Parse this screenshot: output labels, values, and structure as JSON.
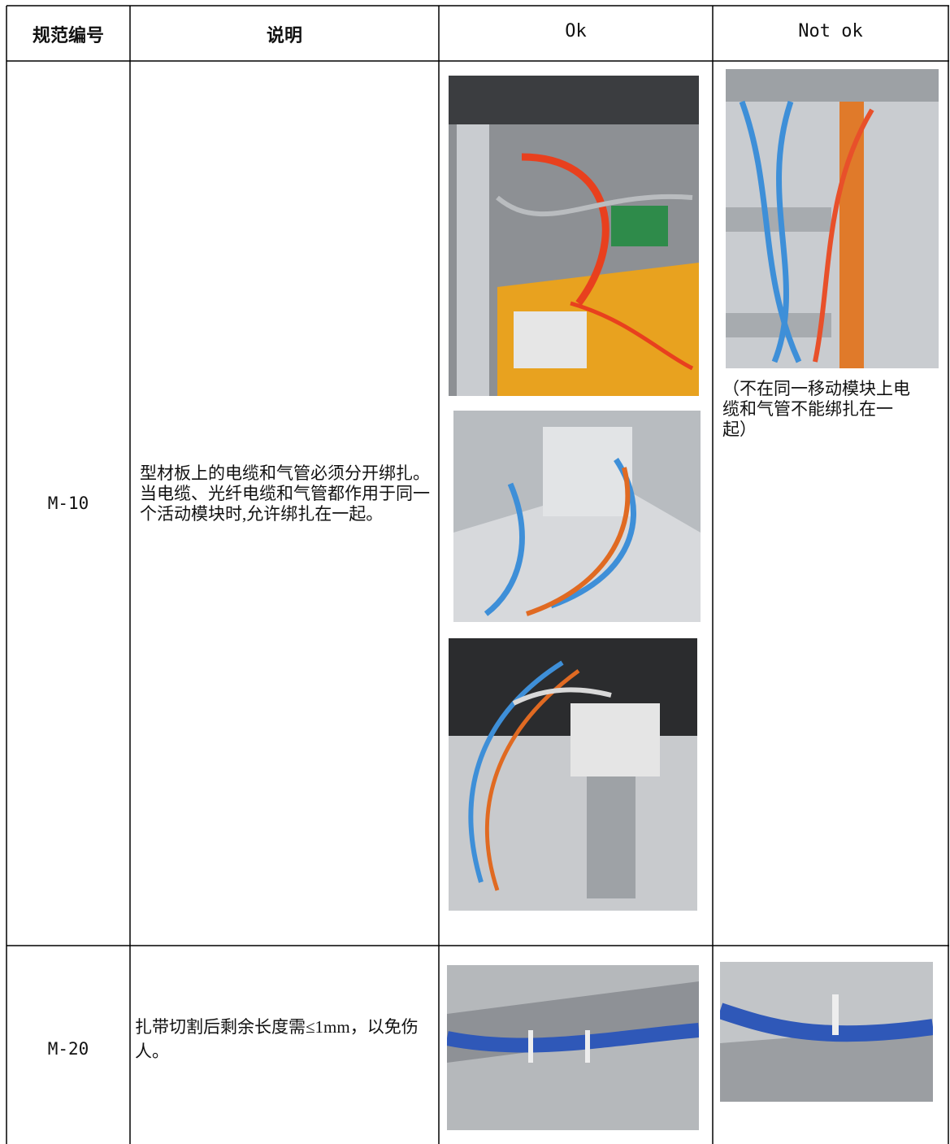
{
  "table": {
    "header": [
      "规范编号",
      "说明",
      "Ok",
      "Not ok"
    ],
    "rows": [
      {
        "id": "M-10",
        "description": "型材板上的电缆和气管必须分开绑扎。当电缆、光纤电缆和气管都作用于同一个活动模块时,允许绑扎在一起。",
        "not_ok_note": "（不在同一移动模块上电缆和气管不能绑扎在一起）"
      },
      {
        "id": "M-20",
        "description": "扎带切割后剩余长度需≤1mm，以免伤人。"
      }
    ]
  }
}
